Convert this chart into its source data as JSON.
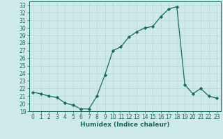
{
  "xlabel": "Humidex (Indice chaleur)",
  "x": [
    0,
    1,
    2,
    3,
    4,
    5,
    6,
    7,
    8,
    9,
    10,
    11,
    12,
    13,
    14,
    15,
    16,
    17,
    18,
    19,
    20,
    21,
    22,
    23
  ],
  "y": [
    21.5,
    21.3,
    21.0,
    20.8,
    20.1,
    19.8,
    19.3,
    19.3,
    21.0,
    23.8,
    27.0,
    27.5,
    28.8,
    29.5,
    30.0,
    30.2,
    31.5,
    32.5,
    32.8,
    22.5,
    21.3,
    22.0,
    21.0,
    20.7
  ],
  "line_color": "#1a6b5a",
  "marker": "D",
  "marker_size": 2.2,
  "bg_color": "#ceeae8",
  "grid_color": "#b8d8d5",
  "ylim": [
    19,
    33.5
  ],
  "xlim": [
    -0.5,
    23.5
  ],
  "yticks": [
    19,
    20,
    21,
    22,
    23,
    24,
    25,
    26,
    27,
    28,
    29,
    30,
    31,
    32,
    33
  ],
  "xticks": [
    0,
    1,
    2,
    3,
    4,
    5,
    6,
    7,
    8,
    9,
    10,
    11,
    12,
    13,
    14,
    15,
    16,
    17,
    18,
    19,
    20,
    21,
    22,
    23
  ],
  "tick_fontsize": 5.5,
  "xlabel_fontsize": 6.5,
  "axis_color": "#1a6b5a",
  "spine_color": "#1a6b5a"
}
